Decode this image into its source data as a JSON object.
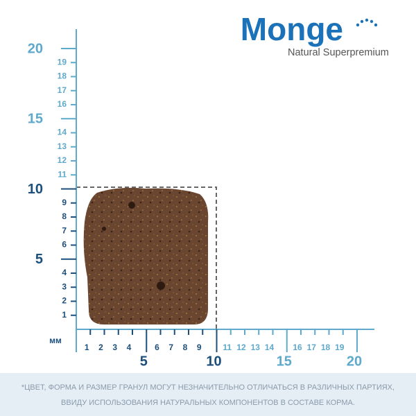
{
  "logo": {
    "brand": "Monge",
    "tagline": "Natural Superpremium"
  },
  "ruler": {
    "unit": "мм",
    "vertical_minor": [
      1,
      2,
      3,
      4,
      6,
      7,
      8,
      9,
      11,
      12,
      13,
      14,
      16,
      17,
      18,
      19
    ],
    "vertical_major": [
      5,
      10,
      15,
      20
    ],
    "horizontal_minor": [
      1,
      2,
      3,
      4,
      6,
      7,
      8,
      9,
      11,
      12,
      13,
      14,
      16,
      17,
      18,
      19
    ],
    "horizontal_major": [
      5,
      10,
      15,
      20
    ]
  },
  "disclaimer": [
    "*ЦВЕТ, ФОРМА И РАЗМЕР ГРАНУЛ МОГУТ НЕЗНАЧИТЕЛЬНО ОТЛИЧАТЬСЯ В РАЗЛИЧНЫХ ПАРТИЯХ,",
    "ВВИДУ ИСПОЛЬЗОВАНИЯ НАТУРАЛЬНЫХ КОМПОНЕНТОВ В СОСТАВЕ КОРМА."
  ]
}
